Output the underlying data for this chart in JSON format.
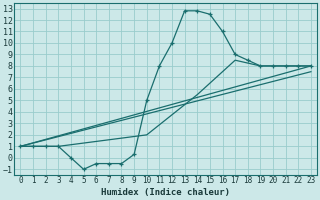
{
  "xlabel": "Humidex (Indice chaleur)",
  "bg_color": "#cce8e8",
  "grid_color": "#99cccc",
  "line_color": "#1a6e6e",
  "xlim": [
    -0.5,
    23.5
  ],
  "ylim": [
    -1.5,
    13.5
  ],
  "xticks": [
    0,
    1,
    2,
    3,
    4,
    5,
    6,
    7,
    8,
    9,
    10,
    11,
    12,
    13,
    14,
    15,
    16,
    17,
    18,
    19,
    20,
    21,
    22,
    23
  ],
  "yticks": [
    -1,
    0,
    1,
    2,
    3,
    4,
    5,
    6,
    7,
    8,
    9,
    10,
    11,
    12,
    13
  ],
  "line1_x": [
    0,
    1,
    2,
    3,
    4,
    5,
    6,
    7,
    8,
    9,
    10,
    11,
    12,
    13,
    14,
    15,
    16,
    17,
    18,
    19,
    20,
    21,
    22,
    23
  ],
  "line1_y": [
    1,
    1,
    1,
    1,
    0,
    -1,
    -0.5,
    -0.5,
    -0.5,
    0.3,
    5,
    8,
    10,
    12.8,
    12.8,
    12.5,
    11,
    9,
    8.5,
    8,
    8,
    8,
    8,
    8
  ],
  "line2_x": [
    0,
    1,
    2,
    3,
    10,
    14,
    17,
    19,
    20,
    21,
    22,
    23
  ],
  "line2_y": [
    1,
    1,
    1,
    1,
    2,
    5.5,
    8.5,
    8,
    8,
    8,
    8,
    8
  ],
  "line3_x": [
    0,
    23
  ],
  "line3_y": [
    1,
    8
  ],
  "line4_x": [
    0,
    23
  ],
  "line4_y": [
    1,
    7.5
  ]
}
